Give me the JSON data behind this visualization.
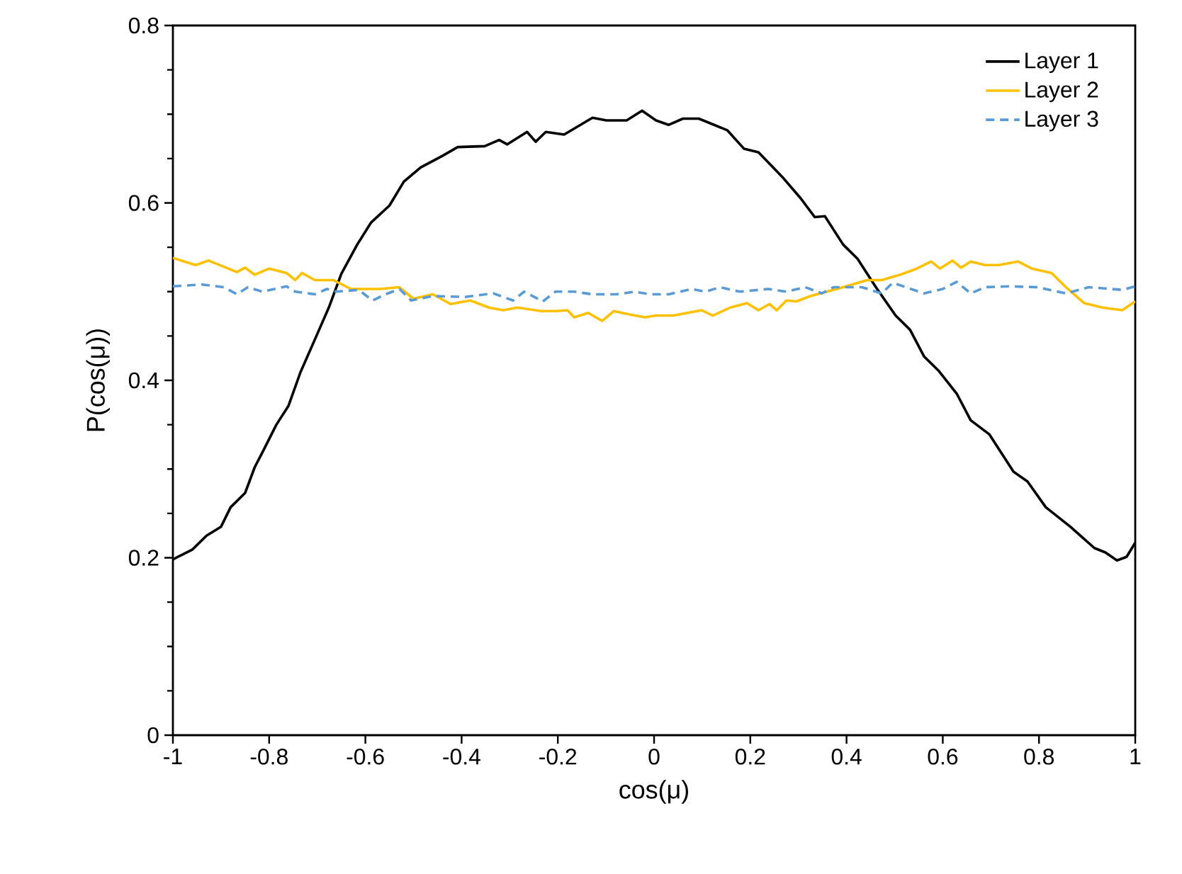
{
  "chart_data": {
    "type": "line",
    "xlabel": "cos(μ)",
    "ylabel": "P(cos(μ))",
    "xlim": [
      -1,
      1
    ],
    "ylim": [
      0,
      0.8
    ],
    "xticks": [
      -1,
      -0.8,
      -0.6,
      -0.4,
      -0.2,
      0,
      0.2,
      0.4,
      0.6,
      0.8,
      1
    ],
    "yticks": [
      0,
      0.2,
      0.4,
      0.6,
      0.8
    ],
    "grid": false,
    "legend": "top right",
    "series": [
      {
        "name": "Layer 1",
        "color": "#000000",
        "line_style": "solid",
        "x": [
          -1,
          -0.99,
          -0.96,
          -0.93,
          -0.9,
          -0.88,
          -0.85,
          -0.83,
          -0.81,
          -0.785,
          -0.76,
          -0.735,
          -0.705,
          -0.676,
          -0.65,
          -0.617,
          -0.588,
          -0.55,
          -0.52,
          -0.485,
          -0.44,
          -0.408,
          -0.352,
          -0.322,
          -0.305,
          -0.264,
          -0.246,
          -0.225,
          -0.187,
          -0.128,
          -0.099,
          -0.057,
          -0.025,
          0.004,
          0.03,
          0.06,
          0.093,
          0.152,
          0.187,
          0.217,
          0.267,
          0.305,
          0.334,
          0.355,
          0.393,
          0.423,
          0.461,
          0.502,
          0.532,
          0.561,
          0.591,
          0.629,
          0.658,
          0.697,
          0.747,
          0.776,
          0.814,
          0.865,
          0.915,
          0.938,
          0.962,
          0.982,
          1.0
        ],
        "values": [
          0.198,
          0.201,
          0.209,
          0.225,
          0.235,
          0.257,
          0.273,
          0.302,
          0.323,
          0.35,
          0.371,
          0.409,
          0.446,
          0.482,
          0.52,
          0.553,
          0.578,
          0.597,
          0.624,
          0.64,
          0.653,
          0.663,
          0.664,
          0.671,
          0.666,
          0.68,
          0.669,
          0.68,
          0.677,
          0.696,
          0.693,
          0.693,
          0.704,
          0.693,
          0.688,
          0.695,
          0.695,
          0.682,
          0.661,
          0.657,
          0.629,
          0.605,
          0.584,
          0.585,
          0.553,
          0.537,
          0.505,
          0.473,
          0.457,
          0.427,
          0.411,
          0.385,
          0.355,
          0.339,
          0.297,
          0.286,
          0.257,
          0.235,
          0.211,
          0.206,
          0.197,
          0.201,
          0.217
        ]
      },
      {
        "name": "Layer 2",
        "color": "#ffc000",
        "line_style": "solid",
        "x": [
          -1,
          -0.953,
          -0.926,
          -0.867,
          -0.85,
          -0.83,
          -0.8,
          -0.764,
          -0.746,
          -0.732,
          -0.705,
          -0.667,
          -0.63,
          -0.57,
          -0.53,
          -0.5,
          -0.46,
          -0.423,
          -0.382,
          -0.343,
          -0.314,
          -0.284,
          -0.234,
          -0.205,
          -0.18,
          -0.166,
          -0.137,
          -0.108,
          -0.084,
          -0.049,
          -0.019,
          0.004,
          0.04,
          0.099,
          0.122,
          0.158,
          0.193,
          0.217,
          0.24,
          0.255,
          0.275,
          0.296,
          0.325,
          0.393,
          0.443,
          0.473,
          0.511,
          0.546,
          0.576,
          0.594,
          0.62,
          0.638,
          0.658,
          0.688,
          0.717,
          0.756,
          0.785,
          0.826,
          0.856,
          0.894,
          0.932,
          0.973,
          1.0
        ],
        "values": [
          0.538,
          0.53,
          0.535,
          0.522,
          0.527,
          0.519,
          0.526,
          0.521,
          0.513,
          0.521,
          0.513,
          0.513,
          0.503,
          0.503,
          0.505,
          0.492,
          0.497,
          0.486,
          0.49,
          0.482,
          0.479,
          0.482,
          0.478,
          0.478,
          0.479,
          0.471,
          0.476,
          0.467,
          0.478,
          0.474,
          0.471,
          0.473,
          0.473,
          0.479,
          0.473,
          0.482,
          0.487,
          0.479,
          0.486,
          0.479,
          0.49,
          0.489,
          0.495,
          0.505,
          0.513,
          0.513,
          0.519,
          0.526,
          0.534,
          0.526,
          0.535,
          0.527,
          0.534,
          0.53,
          0.53,
          0.534,
          0.526,
          0.521,
          0.505,
          0.487,
          0.482,
          0.479,
          0.489
        ]
      },
      {
        "name": "Layer 3",
        "color": "#5b9bd5",
        "line_style": "dashed",
        "x": [
          -1,
          -0.94,
          -0.894,
          -0.867,
          -0.844,
          -0.814,
          -0.764,
          -0.746,
          -0.705,
          -0.68,
          -0.66,
          -0.614,
          -0.585,
          -0.558,
          -0.529,
          -0.505,
          -0.46,
          -0.393,
          -0.334,
          -0.293,
          -0.27,
          -0.231,
          -0.205,
          -0.166,
          -0.128,
          -0.078,
          -0.04,
          -0.01,
          0.031,
          0.078,
          0.107,
          0.137,
          0.178,
          0.237,
          0.275,
          0.314,
          0.349,
          0.373,
          0.432,
          0.473,
          0.496,
          0.561,
          0.6,
          0.629,
          0.658,
          0.688,
          0.738,
          0.797,
          0.856,
          0.903,
          0.973,
          1.0
        ],
        "values": [
          0.506,
          0.508,
          0.505,
          0.497,
          0.505,
          0.5,
          0.506,
          0.5,
          0.497,
          0.503,
          0.5,
          0.502,
          0.49,
          0.497,
          0.503,
          0.49,
          0.495,
          0.494,
          0.498,
          0.49,
          0.5,
          0.489,
          0.5,
          0.5,
          0.497,
          0.497,
          0.5,
          0.497,
          0.497,
          0.503,
          0.5,
          0.505,
          0.5,
          0.503,
          0.5,
          0.505,
          0.498,
          0.505,
          0.505,
          0.498,
          0.51,
          0.498,
          0.503,
          0.511,
          0.498,
          0.505,
          0.506,
          0.505,
          0.498,
          0.505,
          0.502,
          0.506
        ]
      }
    ]
  }
}
